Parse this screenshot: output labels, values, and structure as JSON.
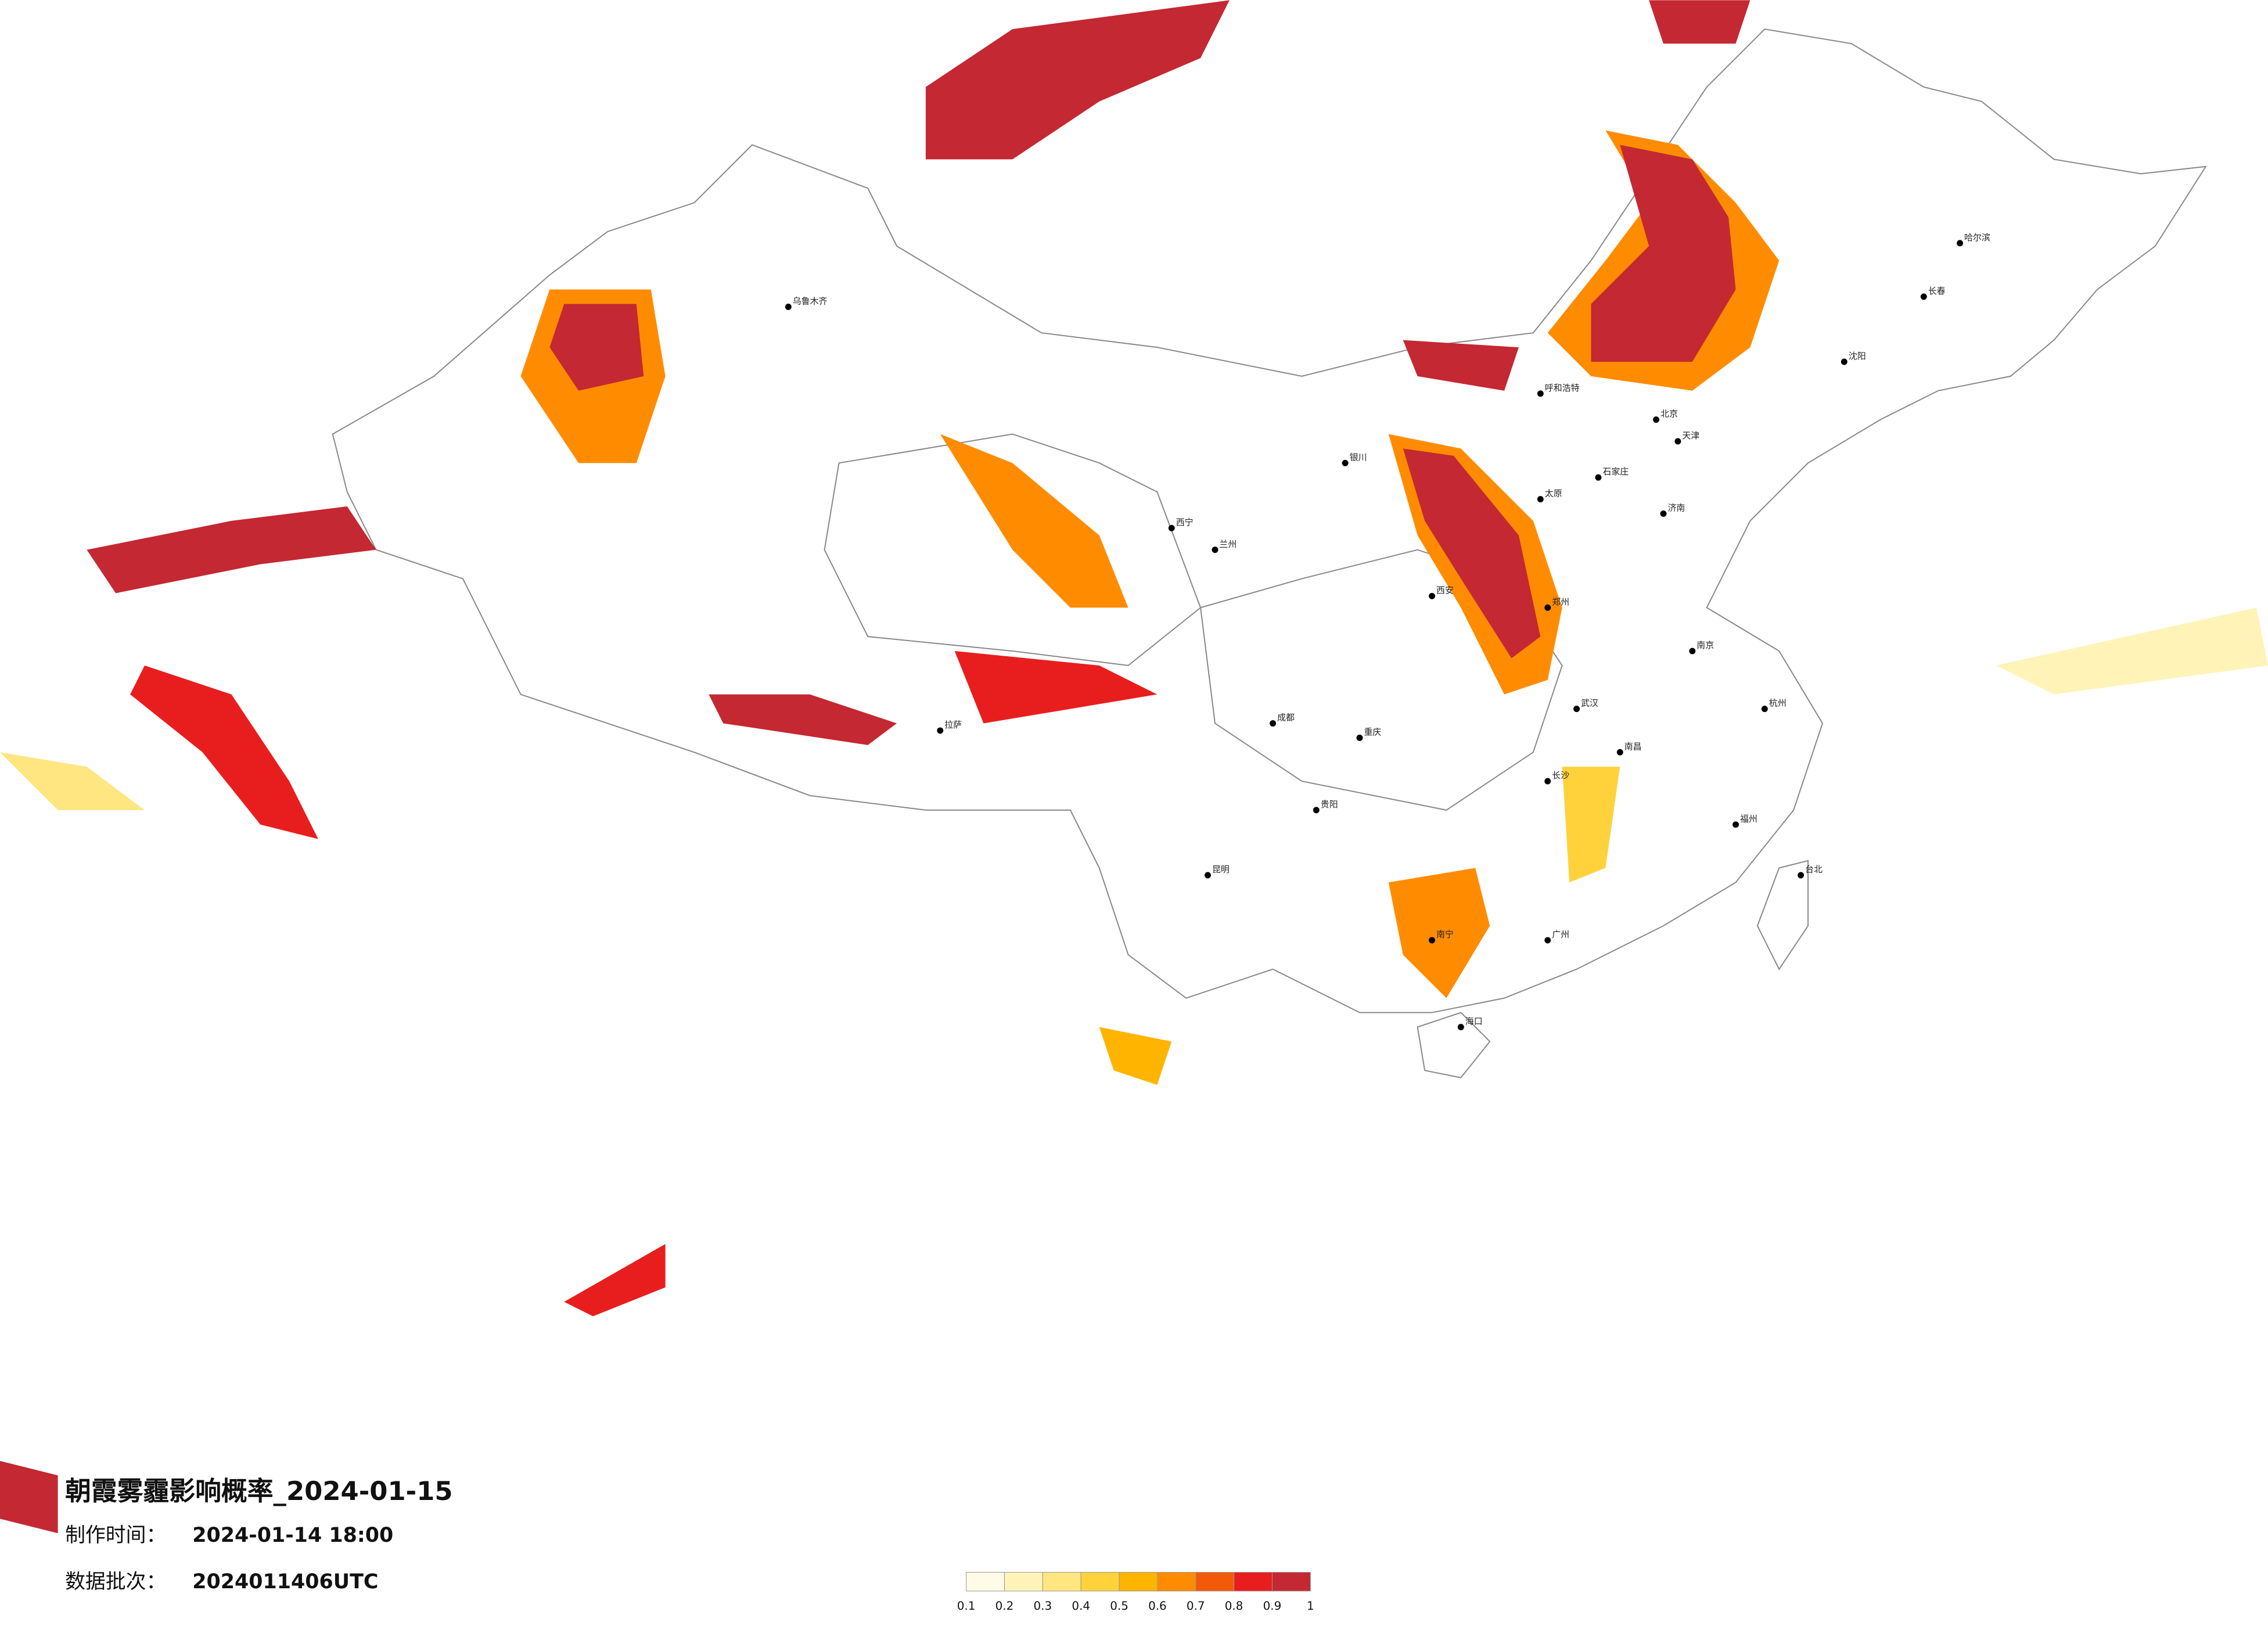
{
  "header": {
    "title": "朝霞雾霾影响概率_2024-01-15",
    "made_label": "制作时间：",
    "made_value": "2024-01-14 18:00",
    "batch_label": "数据批次：",
    "batch_value": "2024011406UTC"
  },
  "legend": {
    "ticks": [
      0.1,
      0.2,
      0.3,
      0.4,
      0.5,
      0.6,
      0.7,
      0.8,
      0.9,
      1
    ],
    "colors": [
      "#fffbe6",
      "#fff3b8",
      "#ffe680",
      "#ffd23c",
      "#ffb400",
      "#ff8c00",
      "#f25a0a",
      "#e81e1e",
      "#c42832"
    ]
  },
  "cities": [
    "北京",
    "天津",
    "石家庄",
    "太原",
    "西安",
    "郑州",
    "武汉",
    "长沙",
    "广州",
    "南宁",
    "昆明",
    "成都",
    "重庆",
    "乌鲁木齐",
    "拉萨",
    "哈尔滨",
    "长春",
    "沈阳",
    "海口",
    "台北",
    "兰州",
    "西宁",
    "呼和浩特",
    "济南",
    "南京",
    "杭州",
    "福州",
    "南昌",
    "贵阳",
    "银川"
  ]
}
